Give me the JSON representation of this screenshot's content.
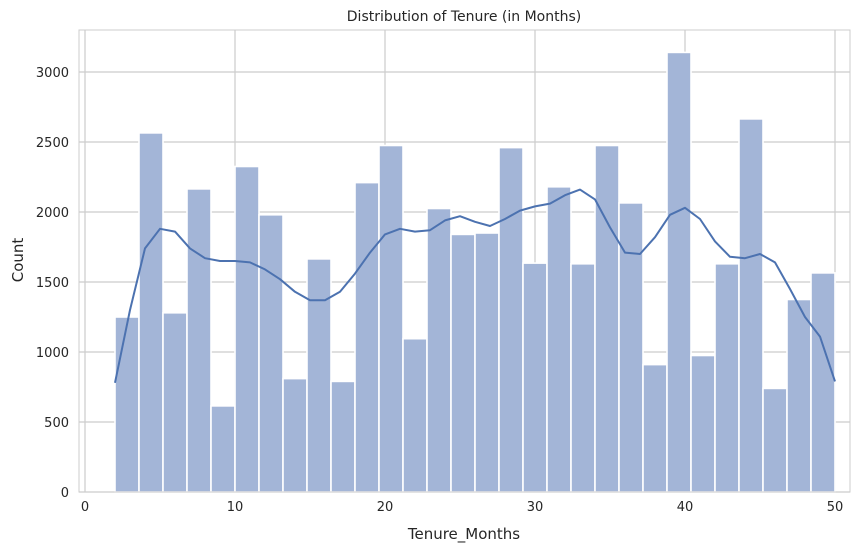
{
  "chart_data": {
    "type": "bar",
    "title": "Distribution of Tenure (in Months)",
    "xlabel": "Tenure_Months",
    "ylabel": "Count",
    "xlim": [
      -0.4,
      51.0
    ],
    "ylim": [
      0,
      3300
    ],
    "xticks": [
      0,
      10,
      20,
      30,
      40,
      50
    ],
    "yticks": [
      0,
      500,
      1000,
      1500,
      2000,
      2500,
      3000
    ],
    "grid": true,
    "bin_edges": [
      2,
      3.6,
      5.2,
      6.8,
      8.4,
      10,
      11.6,
      13.2,
      14.8,
      16.4,
      18,
      19.6,
      21.2,
      22.8,
      24.4,
      26,
      27.6,
      29.2,
      30.8,
      32.4,
      34,
      35.6,
      37.2,
      38.8,
      40.4,
      42,
      43.6,
      45.2,
      46.8,
      48.4,
      50
    ],
    "values": [
      1250,
      2565,
      1280,
      2165,
      615,
      2325,
      1980,
      810,
      1665,
      790,
      2210,
      2475,
      1095,
      2025,
      1840,
      1850,
      2460,
      1635,
      2180,
      1630,
      2475,
      2065,
      910,
      3140,
      975,
      1630,
      2665,
      740,
      1375,
      1565
    ],
    "bar_color": "#a3b5d7",
    "kde": {
      "color": "#4c72b0",
      "x": [
        2,
        3,
        4,
        5,
        6,
        7,
        8,
        9,
        10,
        11,
        12,
        13,
        14,
        15,
        16,
        17,
        18,
        19,
        20,
        21,
        22,
        23,
        24,
        25,
        26,
        27,
        28,
        29,
        30,
        31,
        32,
        33,
        34,
        35,
        36,
        37,
        38,
        39,
        40,
        41,
        42,
        43,
        44,
        45,
        46,
        47,
        48,
        49,
        50
      ],
      "y": [
        780,
        1300,
        1740,
        1880,
        1860,
        1740,
        1670,
        1650,
        1650,
        1640,
        1590,
        1520,
        1430,
        1370,
        1370,
        1430,
        1560,
        1710,
        1840,
        1880,
        1860,
        1870,
        1940,
        1970,
        1930,
        1900,
        1950,
        2010,
        2040,
        2060,
        2120,
        2160,
        2090,
        1890,
        1710,
        1700,
        1820,
        1980,
        2030,
        1950,
        1790,
        1680,
        1670,
        1700,
        1640,
        1450,
        1250,
        1110,
        790
      ]
    }
  }
}
